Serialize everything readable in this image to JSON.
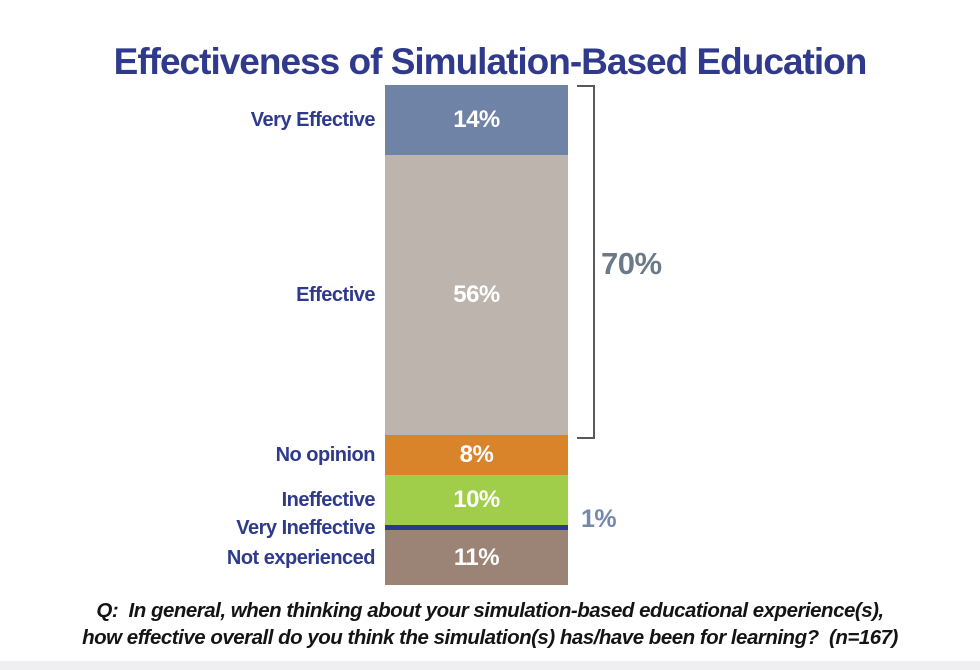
{
  "chart_data": {
    "type": "bar",
    "subtype": "single-stacked-column",
    "title": "Effectiveness of Simulation-Based Education",
    "categories": [
      "Very Effective",
      "Effective",
      "No opinion",
      "Ineffective",
      "Very Ineffective",
      "Not experienced"
    ],
    "values": [
      14,
      56,
      8,
      10,
      1,
      11
    ],
    "value_labels": [
      "14%",
      "56%",
      "8%",
      "10%",
      "1%",
      "11%"
    ],
    "inside_labels": [
      true,
      true,
      true,
      true,
      false,
      true
    ],
    "colors": [
      "#6f83a6",
      "#bdb5ad",
      "#d9832b",
      "#a0cd4a",
      "#2b3a8f",
      "#9b8476"
    ],
    "ylim": [
      0,
      100
    ],
    "grid": false,
    "legend_position": "none",
    "bracket": {
      "label": "70%",
      "covers": [
        "Very Effective",
        "Effective"
      ],
      "total": 70,
      "color": "#58595b",
      "label_color": "#6b7a88"
    },
    "right_annotation": {
      "segment": "Very Ineffective",
      "label": "1%",
      "color": "#7289ac"
    },
    "question_line1": "Q:  In general, when thinking about your simulation-based educational experience(s),",
    "question_line2": "how effective overall do you think the simulation(s) has/have been for learning?  (n=167)",
    "sample_size": "n=167",
    "title_color": "#303a8c",
    "category_label_color": "#2e3a8c",
    "value_label_color": "#ffffff"
  }
}
